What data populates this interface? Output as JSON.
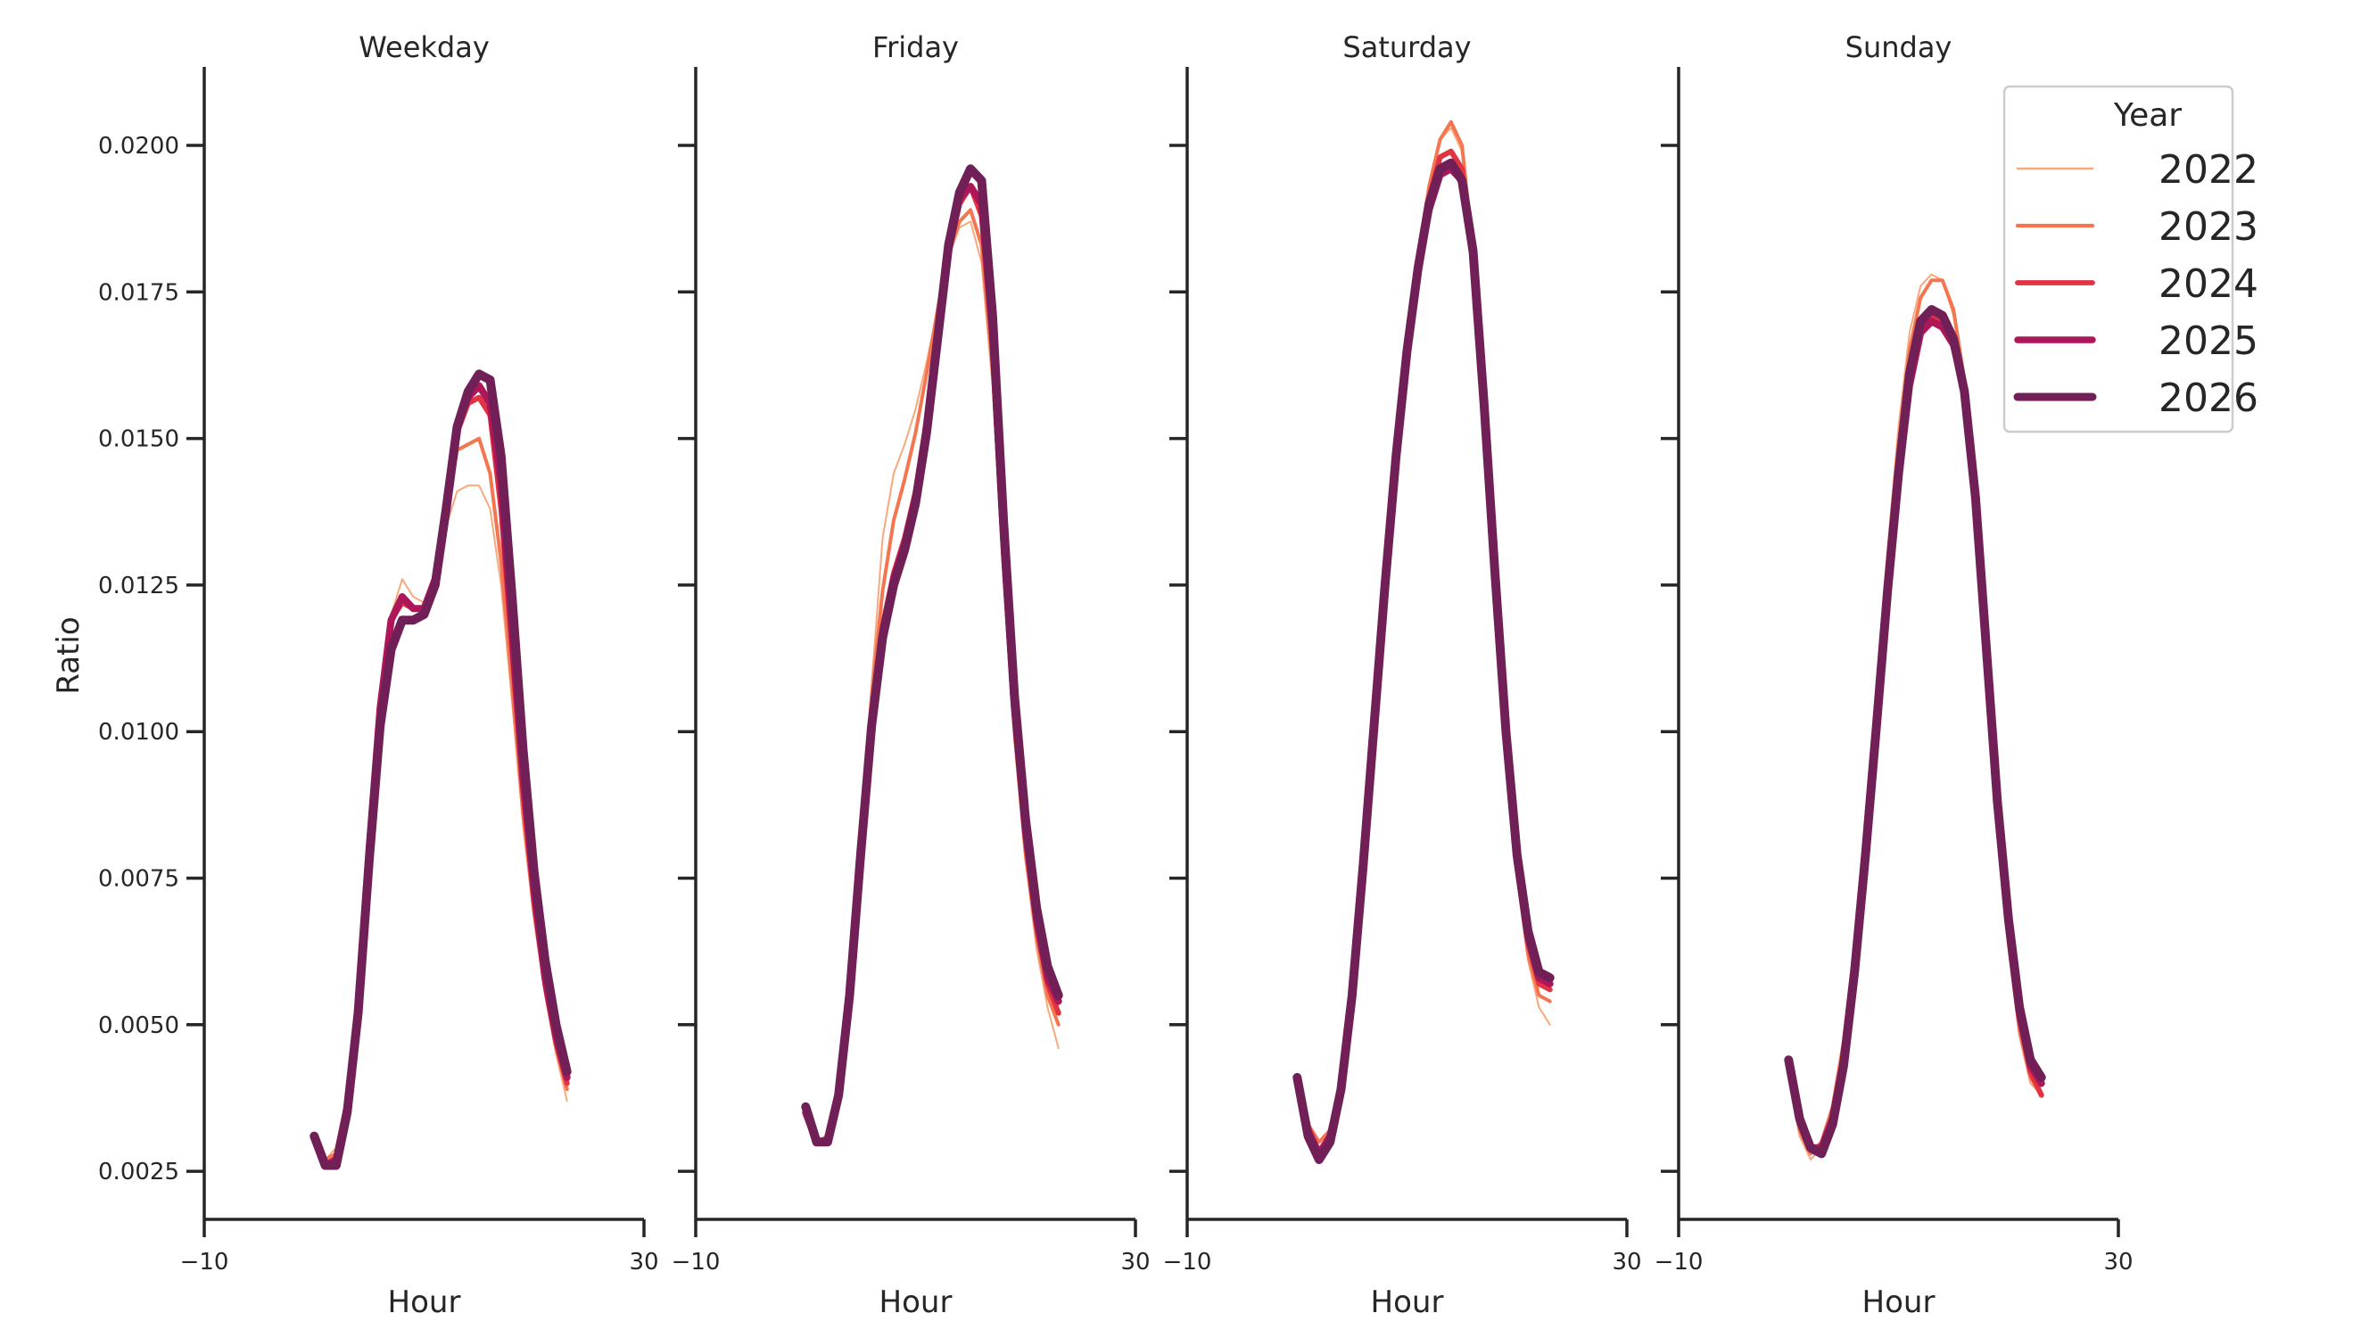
{
  "chart_data": {
    "type": "line",
    "title": "",
    "xlabel": "Hour",
    "ylabel": "Ratio",
    "xlim": [
      -10,
      30
    ],
    "ylim": [
      0.00168,
      0.02134
    ],
    "x_ticks": [
      -10,
      30
    ],
    "x_tick_labels": [
      "−10",
      "30"
    ],
    "y_ticks": [
      0.0025,
      0.005,
      0.0075,
      0.01,
      0.0125,
      0.015,
      0.0175,
      0.02
    ],
    "y_tick_labels": [
      "0.0025",
      "0.0050",
      "0.0075",
      "0.0100",
      "0.0125",
      "0.0150",
      "0.0175",
      "0.0200"
    ],
    "grid": false,
    "legend": {
      "title": "Year",
      "position": "upper right (inside last panel)"
    },
    "x": [
      0,
      1,
      2,
      3,
      4,
      5,
      6,
      7,
      8,
      9,
      10,
      11,
      12,
      13,
      14,
      15,
      16,
      17,
      18,
      19,
      20,
      21,
      22,
      23
    ],
    "series_styles": [
      {
        "name": "2022",
        "color": "#f9a87c",
        "width": 2
      },
      {
        "name": "2023",
        "color": "#f37651",
        "width": 4
      },
      {
        "name": "2024",
        "color": "#e13342",
        "width": 6
      },
      {
        "name": "2025",
        "color": "#ad1759",
        "width": 8
      },
      {
        "name": "2026",
        "color": "#701f57",
        "width": 10
      }
    ],
    "panels": [
      {
        "title": "Weekday",
        "series": [
          {
            "name": "2022",
            "values": [
              0.003,
              0.0027,
              0.0029,
              0.0036,
              0.0053,
              0.008,
              0.0105,
              0.012,
              0.0126,
              0.0123,
              0.0122,
              0.0127,
              0.0135,
              0.0141,
              0.0142,
              0.0142,
              0.0138,
              0.0125,
              0.0105,
              0.0084,
              0.0068,
              0.0055,
              0.0045,
              0.0037
            ]
          },
          {
            "name": "2023",
            "values": [
              0.0031,
              0.0027,
              0.0028,
              0.0036,
              0.0053,
              0.008,
              0.0105,
              0.0119,
              0.0123,
              0.0121,
              0.0121,
              0.0126,
              0.0137,
              0.0148,
              0.0149,
              0.015,
              0.0144,
              0.0129,
              0.0108,
              0.0086,
              0.0069,
              0.0056,
              0.0046,
              0.0039
            ]
          },
          {
            "name": "2024",
            "values": [
              0.0031,
              0.0026,
              0.0027,
              0.0036,
              0.0053,
              0.008,
              0.0104,
              0.0119,
              0.0122,
              0.0121,
              0.0121,
              0.0126,
              0.0138,
              0.0151,
              0.0156,
              0.0157,
              0.0154,
              0.0138,
              0.0114,
              0.009,
              0.0071,
              0.0057,
              0.0047,
              0.004
            ]
          },
          {
            "name": "2025",
            "values": [
              0.0031,
              0.0026,
              0.0027,
              0.0036,
              0.0053,
              0.008,
              0.0104,
              0.0119,
              0.0123,
              0.0121,
              0.0121,
              0.0126,
              0.0138,
              0.0152,
              0.0157,
              0.0159,
              0.0156,
              0.0142,
              0.0117,
              0.0092,
              0.0073,
              0.0058,
              0.0048,
              0.0041
            ]
          },
          {
            "name": "2026",
            "values": [
              0.0031,
              0.0026,
              0.0026,
              0.0035,
              0.0052,
              0.0078,
              0.0101,
              0.0114,
              0.0119,
              0.0119,
              0.012,
              0.0125,
              0.0138,
              0.0152,
              0.0158,
              0.0161,
              0.016,
              0.0147,
              0.0123,
              0.0097,
              0.0076,
              0.0061,
              0.005,
              0.0042
            ]
          }
        ]
      },
      {
        "title": "Friday",
        "series": [
          {
            "name": "2022",
            "values": [
              0.0035,
              0.003,
              0.0031,
              0.0038,
              0.0055,
              0.0081,
              0.0108,
              0.0133,
              0.0144,
              0.0149,
              0.0155,
              0.0163,
              0.0172,
              0.0181,
              0.0186,
              0.0187,
              0.018,
              0.0159,
              0.0126,
              0.0098,
              0.0078,
              0.0063,
              0.0053,
              0.0046
            ]
          },
          {
            "name": "2023",
            "values": [
              0.0035,
              0.003,
              0.0031,
              0.0039,
              0.0056,
              0.0082,
              0.0106,
              0.0124,
              0.0136,
              0.0143,
              0.0151,
              0.0161,
              0.0172,
              0.0182,
              0.0187,
              0.0189,
              0.0183,
              0.0162,
              0.0128,
              0.01,
              0.0079,
              0.0065,
              0.0055,
              0.005
            ]
          },
          {
            "name": "2024",
            "values": [
              0.0035,
              0.003,
              0.003,
              0.0038,
              0.0055,
              0.008,
              0.0103,
              0.0118,
              0.0127,
              0.0133,
              0.0141,
              0.0153,
              0.0168,
              0.0182,
              0.019,
              0.0193,
              0.0188,
              0.0166,
              0.0131,
              0.0103,
              0.0082,
              0.0067,
              0.0057,
              0.0052
            ]
          },
          {
            "name": "2025",
            "values": [
              0.0035,
              0.003,
              0.003,
              0.0038,
              0.0055,
              0.0079,
              0.0102,
              0.0117,
              0.0126,
              0.0132,
              0.014,
              0.0152,
              0.0167,
              0.0182,
              0.0191,
              0.0193,
              0.019,
              0.0168,
              0.0133,
              0.0104,
              0.0083,
              0.0068,
              0.0058,
              0.0054
            ]
          },
          {
            "name": "2026",
            "values": [
              0.0036,
              0.003,
              0.003,
              0.0038,
              0.0055,
              0.0079,
              0.0101,
              0.0116,
              0.0125,
              0.0131,
              0.0139,
              0.0151,
              0.0167,
              0.0183,
              0.0192,
              0.0196,
              0.0194,
              0.0171,
              0.0136,
              0.0106,
              0.0085,
              0.007,
              0.006,
              0.0055
            ]
          }
        ]
      },
      {
        "title": "Saturday",
        "series": [
          {
            "name": "2022",
            "values": [
              0.004,
              0.0032,
              0.003,
              0.0032,
              0.004,
              0.0056,
              0.0078,
              0.0102,
              0.0127,
              0.0149,
              0.0167,
              0.0181,
              0.0193,
              0.0201,
              0.0203,
              0.0199,
              0.0181,
              0.0154,
              0.0124,
              0.0096,
              0.0075,
              0.0061,
              0.0053,
              0.005
            ]
          },
          {
            "name": "2023",
            "values": [
              0.0041,
              0.0033,
              0.003,
              0.0032,
              0.004,
              0.0056,
              0.0078,
              0.0102,
              0.0127,
              0.0149,
              0.0167,
              0.0181,
              0.0193,
              0.0201,
              0.0204,
              0.02,
              0.0182,
              0.0155,
              0.0125,
              0.0097,
              0.0076,
              0.0062,
              0.0055,
              0.0054
            ]
          },
          {
            "name": "2024",
            "values": [
              0.0041,
              0.0032,
              0.0028,
              0.0031,
              0.0039,
              0.0055,
              0.0077,
              0.0101,
              0.0126,
              0.0148,
              0.0166,
              0.018,
              0.0191,
              0.0198,
              0.0199,
              0.0196,
              0.0181,
              0.0154,
              0.0125,
              0.0098,
              0.0077,
              0.0064,
              0.0057,
              0.0056
            ]
          },
          {
            "name": "2025",
            "values": [
              0.0041,
              0.0032,
              0.0028,
              0.0031,
              0.0039,
              0.0055,
              0.0077,
              0.0101,
              0.0125,
              0.0147,
              0.0165,
              0.0179,
              0.0189,
              0.0195,
              0.0196,
              0.0194,
              0.0181,
              0.0155,
              0.0126,
              0.0099,
              0.0078,
              0.0065,
              0.0058,
              0.0057
            ]
          },
          {
            "name": "2026",
            "values": [
              0.0041,
              0.0031,
              0.0027,
              0.003,
              0.0039,
              0.0055,
              0.0077,
              0.0101,
              0.0125,
              0.0147,
              0.0165,
              0.0179,
              0.019,
              0.0196,
              0.0197,
              0.0194,
              0.0182,
              0.0156,
              0.0127,
              0.01,
              0.0079,
              0.0066,
              0.0059,
              0.0058
            ]
          }
        ]
      },
      {
        "title": "Sunday",
        "series": [
          {
            "name": "2022",
            "values": [
              0.0041,
              0.0031,
              0.0027,
              0.0029,
              0.0035,
              0.0046,
              0.0063,
              0.0084,
              0.0108,
              0.0131,
              0.0152,
              0.0168,
              0.0176,
              0.0178,
              0.0177,
              0.0171,
              0.0159,
              0.0138,
              0.0111,
              0.0085,
              0.0063,
              0.0048,
              0.004,
              0.0038
            ]
          },
          {
            "name": "2023",
            "values": [
              0.0042,
              0.0032,
              0.0028,
              0.003,
              0.0036,
              0.0047,
              0.0063,
              0.0083,
              0.0106,
              0.0129,
              0.0149,
              0.0165,
              0.0174,
              0.0177,
              0.0177,
              0.0172,
              0.016,
              0.0139,
              0.0112,
              0.0086,
              0.0064,
              0.0049,
              0.0041,
              0.0038
            ]
          },
          {
            "name": "2024",
            "values": [
              0.0043,
              0.0033,
              0.0029,
              0.0029,
              0.0034,
              0.0044,
              0.006,
              0.008,
              0.0102,
              0.0124,
              0.0144,
              0.016,
              0.0169,
              0.0171,
              0.017,
              0.0167,
              0.0158,
              0.0139,
              0.0113,
              0.0087,
              0.0066,
              0.0051,
              0.0042,
              0.0038
            ]
          },
          {
            "name": "2025",
            "values": [
              0.0044,
              0.0034,
              0.0029,
              0.0029,
              0.0034,
              0.0044,
              0.006,
              0.008,
              0.0102,
              0.0124,
              0.0143,
              0.0159,
              0.0168,
              0.017,
              0.0169,
              0.0166,
              0.0158,
              0.014,
              0.0114,
              0.0088,
              0.0067,
              0.0052,
              0.0043,
              0.004
            ]
          },
          {
            "name": "2026",
            "values": [
              0.0044,
              0.0034,
              0.0029,
              0.0028,
              0.0033,
              0.0043,
              0.0059,
              0.0079,
              0.0101,
              0.0124,
              0.0144,
              0.0161,
              0.017,
              0.0172,
              0.0171,
              0.0167,
              0.0158,
              0.014,
              0.0114,
              0.0088,
              0.0068,
              0.0053,
              0.0044,
              0.0041
            ]
          }
        ]
      }
    ]
  }
}
